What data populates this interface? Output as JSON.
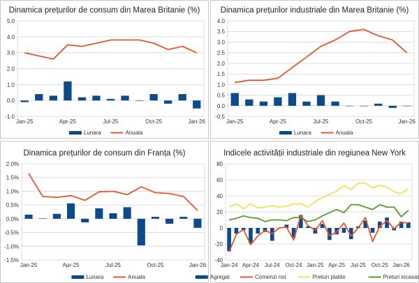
{
  "colors": {
    "bar": "#0b4a8b",
    "line": "#e8542c",
    "yellow": "#f0e05a",
    "green": "#5a9a2e",
    "grid": "#dcdcdc"
  },
  "chart_data": [
    {
      "type": "bar+line",
      "title": "Dinamica prețurilor de consum din Marea Britanie (%)",
      "categories": [
        "Jan-25",
        "Feb-25",
        "Mar-25",
        "Apr-25",
        "May-25",
        "Jun-25",
        "Jul-25",
        "Aug-25",
        "Sep-25",
        "Oct-25",
        "Nov-25",
        "Dec-25",
        "Jan-26"
      ],
      "xtick_labels": [
        "Jan-25",
        "Apr-25",
        "Jul-25",
        "Oct-25",
        "Jan-26"
      ],
      "ylim": [
        -1,
        5
      ],
      "yticks": [
        "-1.0",
        "0.0",
        "1.0",
        "2.0",
        "3.0",
        "4.0",
        "5.0"
      ],
      "grid": true,
      "legend": "bottom",
      "series": [
        {
          "name": "Lunara",
          "kind": "bar",
          "values": [
            -0.1,
            0.4,
            0.3,
            1.2,
            0.2,
            0.3,
            0.1,
            0.3,
            0.0,
            0.4,
            -0.2,
            0.4,
            -0.5
          ]
        },
        {
          "name": "Anuala",
          "kind": "line",
          "values": [
            3.0,
            2.8,
            2.6,
            3.5,
            3.4,
            3.6,
            3.8,
            3.8,
            3.8,
            3.6,
            3.2,
            3.4,
            3.0
          ]
        }
      ]
    },
    {
      "type": "bar+line",
      "title": "Dinamica prețurilor industriale din Marea Britanie (%)",
      "categories": [
        "Jan-25",
        "Feb-25",
        "Mar-25",
        "Apr-25",
        "May-25",
        "Jun-25",
        "Jul-25",
        "Aug-25",
        "Sep-25",
        "Oct-25",
        "Nov-25",
        "Dec-25",
        "Jan-26"
      ],
      "xtick_labels": [
        "Jan-25",
        "Apr-25",
        "Jul-25",
        "Oct-25",
        "Jan-26"
      ],
      "ylim": [
        -0.5,
        4
      ],
      "yticks": [
        "-0.5",
        "0.0",
        "0.5",
        "1.0",
        "1.5",
        "2.0",
        "2.5",
        "3.0",
        "3.5",
        "4.0"
      ],
      "grid": true,
      "legend": "bottom",
      "series": [
        {
          "name": "Lunara",
          "kind": "bar",
          "values": [
            0.6,
            0.3,
            0.2,
            0.4,
            0.6,
            0.2,
            0.5,
            0.2,
            0.0,
            0.0,
            0.1,
            -0.1,
            0.0
          ]
        },
        {
          "name": "Anuala",
          "kind": "line",
          "values": [
            1.1,
            1.2,
            1.2,
            1.3,
            1.8,
            2.3,
            2.8,
            3.1,
            3.5,
            3.6,
            3.3,
            3.1,
            2.5
          ]
        }
      ]
    },
    {
      "type": "bar+line",
      "title": "Dinamica prețurilor de consum din Franța (%)",
      "categories": [
        "Jan-25",
        "Feb-25",
        "Mar-25",
        "Apr-25",
        "May-25",
        "Jun-25",
        "Jul-25",
        "Aug-25",
        "Sep-25",
        "Oct-25",
        "Nov-25",
        "Dec-25",
        "Jan-26"
      ],
      "xtick_labels": [
        "Jan-25",
        "Apr-25",
        "Jul-25",
        "Oct-25",
        "Jan-26"
      ],
      "ylim": [
        -1.5,
        2
      ],
      "yticks": [
        "-1.5%",
        "-1.0%",
        "-0.5%",
        "0.0%",
        "0.5%",
        "1.0%",
        "1.5%",
        "2.0%"
      ],
      "grid": true,
      "legend": "bottom",
      "series": [
        {
          "name": "Lunara",
          "kind": "bar",
          "values": [
            0.15,
            0.01,
            0.18,
            0.56,
            -0.13,
            0.38,
            0.2,
            0.42,
            -0.97,
            0.07,
            -0.18,
            0.07,
            -0.33
          ]
        },
        {
          "name": "Anuala",
          "kind": "line",
          "values": [
            1.65,
            0.81,
            0.78,
            0.84,
            0.67,
            0.98,
            1.0,
            0.88,
            1.16,
            0.95,
            0.92,
            0.81,
            0.3
          ]
        }
      ]
    },
    {
      "type": "bar+line",
      "title": "Indicele activității industriale din regiunea New York",
      "categories": [
        "Jan-24",
        "Feb-24",
        "Mar-24",
        "Apr-24",
        "May-24",
        "Jun-24",
        "Jul-24",
        "Aug-24",
        "Sep-24",
        "Oct-24",
        "Nov-24",
        "Dec-24",
        "Jan-25",
        "Feb-25",
        "Mar-25",
        "Apr-25",
        "May-25",
        "Jun-25",
        "Jul-25",
        "Aug-25",
        "Sep-25",
        "Oct-25",
        "Nov-25",
        "Dec-25",
        "Jan-26",
        "Feb-26"
      ],
      "xtick_labels": [
        "Jan-24",
        "Apr-24",
        "Jul-24",
        "Oct-24",
        "Jan-25",
        "Apr-25",
        "Jul-25",
        "Oct-25",
        "Jan-26"
      ],
      "ylim": [
        -40,
        80
      ],
      "yticks": [
        "-40",
        "-20",
        "0",
        "20",
        "40",
        "60",
        "80"
      ],
      "grid": true,
      "legend": "bottom",
      "series": [
        {
          "name": "Agregat",
          "kind": "bar",
          "values": [
            -29,
            -7,
            -3,
            -19,
            -7,
            -5,
            -16,
            0,
            4,
            -12,
            16,
            2,
            -7,
            5,
            -15,
            -8,
            -6,
            -14,
            2,
            9,
            -6,
            8,
            13,
            -3,
            8,
            7
          ]
        },
        {
          "name": "Comenzi noi",
          "kind": "line",
          "color": "line",
          "values": [
            -30,
            -8,
            -2,
            -21,
            -10,
            -3,
            -7,
            0,
            1,
            -15,
            16,
            3,
            -3,
            9,
            -10,
            -5,
            6,
            -10,
            0,
            13,
            -17,
            2,
            9,
            -1,
            7,
            6
          ]
        },
        {
          "name": "Preturi platite",
          "kind": "line",
          "color": "yellow",
          "values": [
            26,
            30,
            24,
            30,
            25,
            26,
            28,
            26,
            27,
            30,
            30,
            26,
            33,
            38,
            42,
            46,
            53,
            48,
            56,
            56,
            50,
            53,
            51,
            45,
            43,
            49
          ]
        },
        {
          "name": "Preturi incasate",
          "kind": "line",
          "color": "green",
          "values": [
            10,
            12,
            15,
            13,
            12,
            8,
            10,
            10,
            9,
            13,
            13,
            8,
            10,
            15,
            19,
            23,
            19,
            29,
            29,
            26,
            23,
            29,
            26,
            26,
            14,
            22
          ]
        }
      ]
    }
  ]
}
